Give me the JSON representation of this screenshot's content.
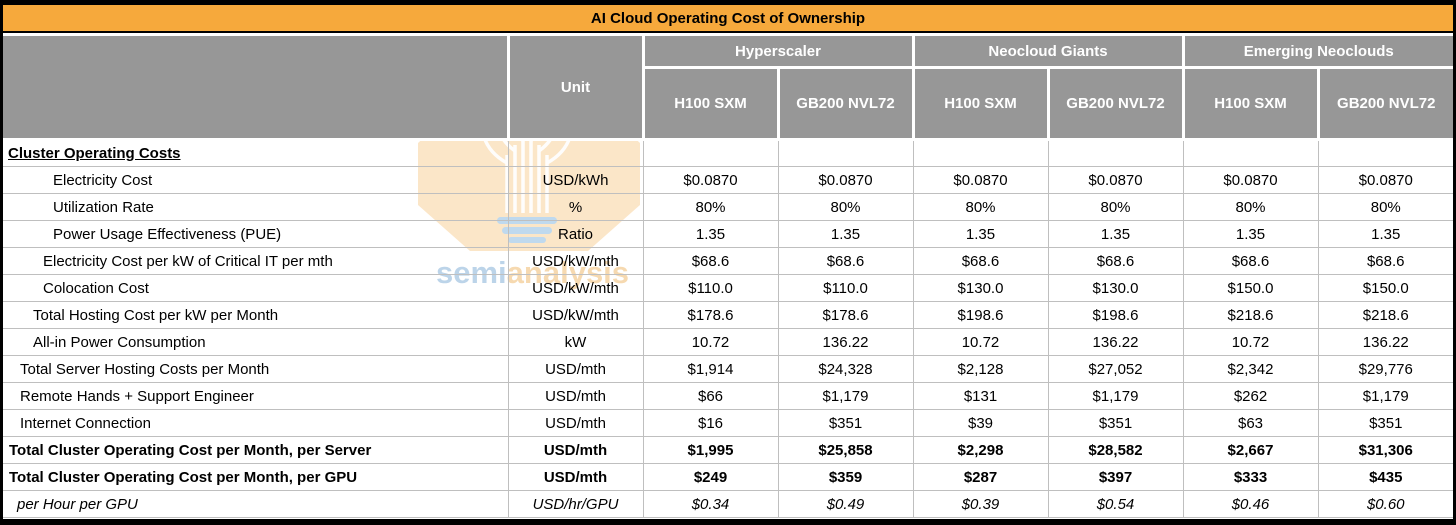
{
  "title": "AI Cloud Operating Cost of Ownership",
  "colors": {
    "title_bg": "#F6A93C",
    "header_bg": "#979797",
    "grid_line": "#BFBFBF",
    "watermark_octagon": "#FBE5C6",
    "watermark_semi_text": "#B9D2E8",
    "watermark_analysis_text": "#F6D8AC"
  },
  "header": {
    "unit_label": "Unit",
    "groups": [
      {
        "label": "Hyperscaler",
        "columns": [
          "H100 SXM",
          "GB200 NVL72"
        ]
      },
      {
        "label": "Neocloud Giants",
        "columns": [
          "H100 SXM",
          "GB200 NVL72"
        ]
      },
      {
        "label": "Emerging Neoclouds",
        "columns": [
          "H100 SXM",
          "GB200 NVL72"
        ]
      }
    ]
  },
  "watermark": {
    "text_semi": "semi",
    "text_analysis": "analysis"
  },
  "chart_data": {
    "type": "table",
    "title": "AI Cloud Operating Cost of Ownership",
    "column_groups": [
      "Hyperscaler",
      "Neocloud Giants",
      "Emerging Neoclouds"
    ],
    "columns": [
      "Unit",
      "Hyperscaler H100 SXM",
      "Hyperscaler GB200 NVL72",
      "Neocloud Giants H100 SXM",
      "Neocloud Giants GB200 NVL72",
      "Emerging Neoclouds H100 SXM",
      "Emerging Neoclouds GB200 NVL72"
    ],
    "rows": [
      {
        "label": "Cluster Operating Costs",
        "unit": "",
        "values": [
          "",
          "",
          "",
          "",
          "",
          ""
        ],
        "style": "section",
        "indent": 5
      },
      {
        "label": "Electricity Cost",
        "unit": "USD/kWh",
        "values": [
          "$0.0870",
          "$0.0870",
          "$0.0870",
          "$0.0870",
          "$0.0870",
          "$0.0870"
        ],
        "style": "normal",
        "indent": 50
      },
      {
        "label": "Utilization Rate",
        "unit": "%",
        "values": [
          "80%",
          "80%",
          "80%",
          "80%",
          "80%",
          "80%"
        ],
        "style": "normal",
        "indent": 50
      },
      {
        "label": "Power Usage Effectiveness (PUE)",
        "unit": "Ratio",
        "values": [
          "1.35",
          "1.35",
          "1.35",
          "1.35",
          "1.35",
          "1.35"
        ],
        "style": "normal",
        "indent": 50
      },
      {
        "label": "Electricity Cost per kW of Critical IT per mth",
        "unit": "USD/kW/mth",
        "values": [
          "$68.6",
          "$68.6",
          "$68.6",
          "$68.6",
          "$68.6",
          "$68.6"
        ],
        "style": "normal",
        "indent": 40
      },
      {
        "label": "Colocation Cost",
        "unit": "USD/kW/mth",
        "values": [
          "$110.0",
          "$110.0",
          "$130.0",
          "$130.0",
          "$150.0",
          "$150.0"
        ],
        "style": "normal",
        "indent": 40
      },
      {
        "label": "Total Hosting Cost per kW per Month",
        "unit": "USD/kW/mth",
        "values": [
          "$178.6",
          "$178.6",
          "$198.6",
          "$198.6",
          "$218.6",
          "$218.6"
        ],
        "style": "normal",
        "indent": 30
      },
      {
        "label": "All-in Power Consumption",
        "unit": "kW",
        "values": [
          "10.72",
          "136.22",
          "10.72",
          "136.22",
          "10.72",
          "136.22"
        ],
        "style": "normal",
        "indent": 30
      },
      {
        "label": "Total Server Hosting Costs per Month",
        "unit": "USD/mth",
        "values": [
          "$1,914",
          "$24,328",
          "$2,128",
          "$27,052",
          "$2,342",
          "$29,776"
        ],
        "style": "normal",
        "indent": 17
      },
      {
        "label": "Remote Hands + Support Engineer",
        "unit": "USD/mth",
        "values": [
          "$66",
          "$1,179",
          "$131",
          "$1,179",
          "$262",
          "$1,179"
        ],
        "style": "normal",
        "indent": 17
      },
      {
        "label": "Internet Connection",
        "unit": "USD/mth",
        "values": [
          "$16",
          "$351",
          "$39",
          "$351",
          "$63",
          "$351"
        ],
        "style": "normal",
        "indent": 17
      },
      {
        "label": "Total Cluster Operating Cost per Month, per Server",
        "unit": "USD/mth",
        "values": [
          "$1,995",
          "$25,858",
          "$2,298",
          "$28,582",
          "$2,667",
          "$31,306"
        ],
        "style": "bold",
        "indent": 6
      },
      {
        "label": "Total Cluster Operating Cost per Month, per GPU",
        "unit": "USD/mth",
        "values": [
          "$249",
          "$359",
          "$287",
          "$397",
          "$333",
          "$435"
        ],
        "style": "bold",
        "indent": 6
      },
      {
        "label": "per Hour per GPU",
        "unit": "USD/hr/GPU",
        "values": [
          "$0.34",
          "$0.49",
          "$0.39",
          "$0.54",
          "$0.46",
          "$0.60"
        ],
        "style": "italic",
        "indent": 14
      }
    ]
  }
}
